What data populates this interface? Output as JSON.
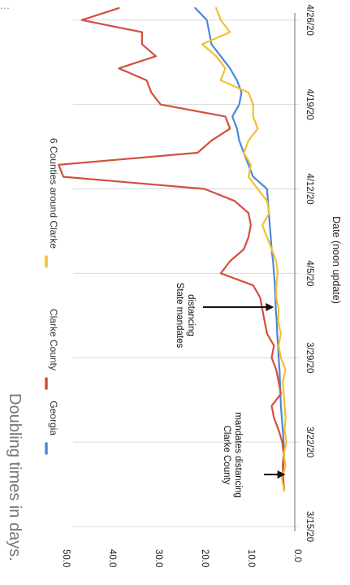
{
  "chart_data": {
    "type": "line",
    "title": "Doubling times in days.",
    "xlabel": "Date (noon update)",
    "ylabel": "",
    "x_ticks": [
      "3/15/20",
      "3/22/20",
      "3/29/20",
      "4/5/20",
      "4/12/20",
      "4/19/20",
      "4/26/20"
    ],
    "y_ticks": [
      "0.0",
      "10.0",
      "20.0",
      "30.0",
      "40.0",
      "50.0"
    ],
    "ylim": [
      0,
      50
    ],
    "xlim": [
      "3/15/20",
      "4/29/20"
    ],
    "grid": "horizontal gridlines at each date tick",
    "legend_position": "top",
    "dates": [
      "3/18/20",
      "3/19/20",
      "3/20/20",
      "3/21/20",
      "3/22/20",
      "3/23/20",
      "3/24/20",
      "3/25/20",
      "3/26/20",
      "3/27/20",
      "3/28/20",
      "3/29/20",
      "3/30/20",
      "3/31/20",
      "4/1/20",
      "4/2/20",
      "4/3/20",
      "4/4/20",
      "4/5/20",
      "4/6/20",
      "4/7/20",
      "4/8/20",
      "4/9/20",
      "4/10/20",
      "4/11/20",
      "4/12/20",
      "4/13/20",
      "4/14/20",
      "4/15/20",
      "4/16/20",
      "4/17/20",
      "4/18/20",
      "4/19/20",
      "4/20/20",
      "4/21/20",
      "4/22/20",
      "4/23/20",
      "4/24/20",
      "4/25/20",
      "4/26/20",
      "4/27/20"
    ],
    "series": [
      {
        "name": "Georgia",
        "color": "#4f86d9",
        "values": [
          2.3,
          2.6,
          2.5,
          2.3,
          2.4,
          2.6,
          2.8,
          3.0,
          3.1,
          3.2,
          3.3,
          3.5,
          3.6,
          3.8,
          3.9,
          4.1,
          4.2,
          4.3,
          4.5,
          4.7,
          5.0,
          5.2,
          5.4,
          5.6,
          5.8,
          6.0,
          9.0,
          10.0,
          11.0,
          12.0,
          12.5,
          13.5,
          12.0,
          11.5,
          12.5,
          14.0,
          16.0,
          18.0,
          18.5,
          19.0,
          21.5
        ]
      },
      {
        "name": "Clarke County",
        "color": "#d34f3f",
        "values": [
          2.3,
          2.5,
          2.6,
          2.4,
          2.7,
          3.5,
          4.5,
          5.0,
          3.0,
          3.5,
          4.0,
          5.0,
          4.5,
          6.0,
          6.5,
          7.0,
          7.5,
          9.0,
          16.0,
          14.0,
          11.0,
          10.0,
          9.5,
          10.0,
          13.0,
          19.5,
          50.0,
          51.0,
          21.0,
          18.0,
          14.0,
          15.0,
          29.0,
          31.0,
          32.0,
          38.0,
          30.0,
          33.0,
          33.0,
          46.0,
          38.0
        ]
      },
      {
        "name": "6 Counties around Clarke",
        "color": "#f2c12e",
        "values": [
          2.3,
          2.8,
          2.0,
          2.4,
          1.8,
          2.2,
          2.0,
          2.2,
          2.4,
          2.6,
          2.0,
          3.0,
          3.5,
          3.0,
          3.6,
          3.5,
          4.0,
          4.0,
          3.7,
          4.0,
          5.0,
          6.0,
          7.0,
          5.5,
          6.0,
          8.0,
          10.0,
          9.5,
          11.0,
          10.0,
          8.0,
          9.0,
          9.0,
          10.0,
          16.0,
          15.0,
          17.0,
          20.0,
          14.0,
          16.0,
          17.0
        ]
      }
    ],
    "annotations": [
      {
        "lines": [
          "Clarke County",
          "mandates distancing"
        ],
        "date": "3/18/20",
        "arrow_to": 2.0
      },
      {
        "lines": [
          "State mandates",
          "distancing"
        ],
        "date": "4/3/20",
        "arrow_to": 4.5
      }
    ]
  }
}
